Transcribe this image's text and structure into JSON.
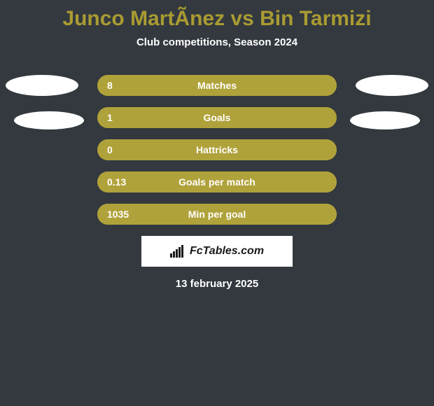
{
  "background_color": "#33393f",
  "title": {
    "text": "Junco MartÃ­nez vs Bin Tarmizi",
    "color": "#a99b32",
    "fontsize": 30
  },
  "subtitle": {
    "text": "Club competitions, Season 2024",
    "color": "#ffffff",
    "fontsize": 15
  },
  "stats": {
    "bar_bg_color": "#a99b32",
    "bar_fill_color": "#b0a23a",
    "label_fontsize": 14,
    "value_fontsize": 14,
    "rows": [
      {
        "label": "Matches",
        "value": "8",
        "fill_percent": 100
      },
      {
        "label": "Goals",
        "value": "1",
        "fill_percent": 100
      },
      {
        "label": "Hattricks",
        "value": "0",
        "fill_percent": 100
      },
      {
        "label": "Goals per match",
        "value": "0.13",
        "fill_percent": 100
      },
      {
        "label": "Min per goal",
        "value": "1035",
        "fill_percent": 100
      }
    ]
  },
  "avatars": {
    "color": "#ffffff"
  },
  "brand": {
    "box_bg": "#ffffff",
    "text": "FcTables.com",
    "text_color": "#1a1a1a",
    "fontsize": 16,
    "icon_color": "#1a1a1a"
  },
  "date": {
    "text": "13 february 2025",
    "color": "#ffffff",
    "fontsize": 15
  }
}
